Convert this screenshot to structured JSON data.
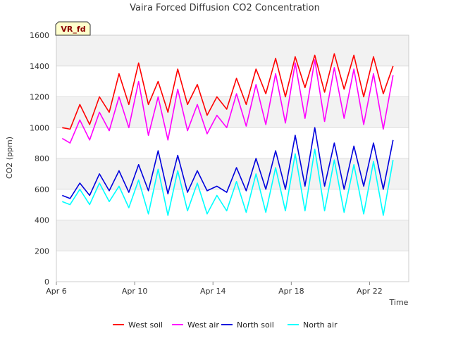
{
  "chart_data": {
    "type": "line",
    "title": "Vaira Forced Diffusion CO2 Concentration",
    "badge": "VR_fd",
    "xlabel": "Time",
    "ylabel": "CO2 (ppm)",
    "xlim": [
      0,
      18
    ],
    "ylim": [
      0,
      1600
    ],
    "x_ticks": [
      {
        "value": 0,
        "label": "Apr 6"
      },
      {
        "value": 4,
        "label": "Apr 10"
      },
      {
        "value": 8,
        "label": "Apr 14"
      },
      {
        "value": 12,
        "label": "Apr 18"
      },
      {
        "value": 16,
        "label": "Apr 22"
      }
    ],
    "y_ticks": [
      0,
      200,
      400,
      600,
      800,
      1000,
      1200,
      1400,
      1600
    ],
    "legend_position": "bottom",
    "x": [
      0.3,
      0.7,
      1.2,
      1.7,
      2.2,
      2.7,
      3.2,
      3.7,
      4.2,
      4.7,
      5.2,
      5.7,
      6.2,
      6.7,
      7.2,
      7.7,
      8.2,
      8.7,
      9.2,
      9.7,
      10.2,
      10.7,
      11.2,
      11.7,
      12.2,
      12.7,
      13.2,
      13.7,
      14.2,
      14.7,
      15.2,
      15.7,
      16.2,
      16.7,
      17.2
    ],
    "series": [
      {
        "name": "West soil",
        "color": "#ff0000",
        "values": [
          1000,
          990,
          1150,
          1020,
          1200,
          1100,
          1350,
          1150,
          1420,
          1150,
          1300,
          1100,
          1380,
          1150,
          1280,
          1080,
          1200,
          1120,
          1320,
          1150,
          1380,
          1220,
          1450,
          1200,
          1460,
          1260,
          1470,
          1230,
          1480,
          1250,
          1470,
          1200,
          1460,
          1220,
          1400
        ]
      },
      {
        "name": "West air",
        "color": "#ff00ff",
        "values": [
          930,
          900,
          1050,
          920,
          1100,
          980,
          1200,
          1000,
          1300,
          950,
          1200,
          920,
          1250,
          980,
          1150,
          960,
          1080,
          1000,
          1220,
          1010,
          1280,
          1020,
          1350,
          1030,
          1420,
          1060,
          1440,
          1040,
          1390,
          1060,
          1380,
          1020,
          1350,
          990,
          1340
        ]
      },
      {
        "name": "North soil",
        "color": "#0000dd",
        "values": [
          560,
          540,
          640,
          560,
          700,
          590,
          720,
          580,
          760,
          590,
          850,
          570,
          820,
          580,
          720,
          590,
          620,
          580,
          740,
          590,
          800,
          600,
          850,
          600,
          950,
          620,
          1000,
          620,
          900,
          600,
          880,
          620,
          900,
          600,
          920
        ]
      },
      {
        "name": "North air",
        "color": "#00ffff",
        "values": [
          520,
          500,
          600,
          500,
          640,
          520,
          620,
          480,
          660,
          440,
          730,
          430,
          720,
          460,
          640,
          440,
          560,
          460,
          650,
          450,
          700,
          450,
          740,
          460,
          830,
          460,
          860,
          460,
          790,
          450,
          760,
          440,
          780,
          430,
          790
        ]
      }
    ]
  }
}
